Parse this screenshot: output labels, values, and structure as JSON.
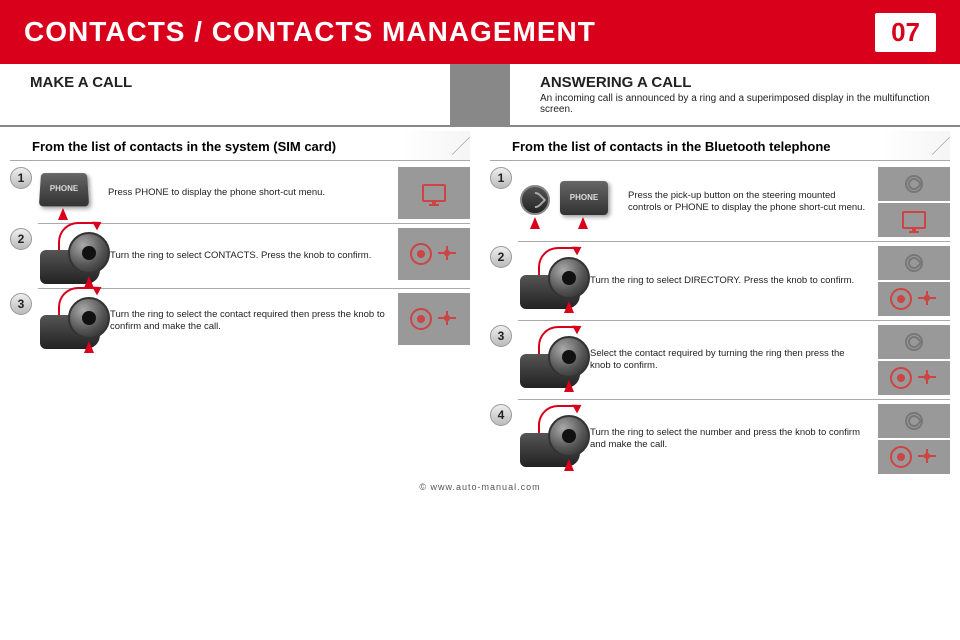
{
  "header": {
    "title": "CONTACTS / CONTACTS MANAGEMENT",
    "page": "07"
  },
  "left_sub": {
    "label": "MAKE A CALL"
  },
  "right_sub": {
    "label": "ANSWERING A CALL",
    "note": "An incoming call is announced by a ring and a superimposed display in the multifunction screen."
  },
  "left_section": {
    "title": "From the list of contacts in the system (SIM card)"
  },
  "right_section": {
    "title": "From the list of contacts in the Bluetooth telephone"
  },
  "left_steps": [
    {
      "n": "1",
      "text": "Press PHONE to display the phone short-cut menu."
    },
    {
      "n": "2",
      "text": "Turn the ring to select CONTACTS. Press the knob to confirm."
    },
    {
      "n": "3",
      "text": "Turn the ring to select the contact required then press the knob to confirm and make the call."
    }
  ],
  "right_steps": [
    {
      "n": "1",
      "text": "Press the pick-up button on the steering mounted controls or PHONE to display the phone short-cut menu."
    },
    {
      "n": "2",
      "text": "Turn the ring to select DIRECTORY. Press the knob to confirm."
    },
    {
      "n": "3",
      "text": "Select the contact required by turning the ring then press the knob to confirm."
    },
    {
      "n": "4",
      "text": "Turn the ring to select the number and press the knob to confirm and make the call."
    }
  ],
  "footer": "© www.auto-manual.com"
}
